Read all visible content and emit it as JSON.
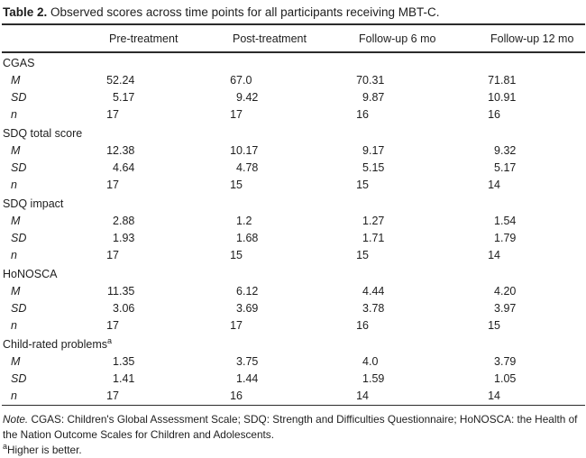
{
  "caption": {
    "label": "Table 2.",
    "text": "Observed scores across time points for all participants receiving MBT-C."
  },
  "table": {
    "columns": [
      "Pre-treatment",
      "Post-treatment",
      "Follow-up 6 mo",
      "Follow-up 12 mo"
    ],
    "groups": [
      {
        "name": "CGAS",
        "sup": "",
        "rows": [
          {
            "stat": "M",
            "values": [
              "52.24",
              "67.0",
              "70.31",
              "71.81"
            ]
          },
          {
            "stat": "SD",
            "values": [
              "5.17",
              "9.42",
              "9.87",
              "10.91"
            ]
          },
          {
            "stat": "n",
            "values": [
              "17",
              "17",
              "16",
              "16"
            ]
          }
        ]
      },
      {
        "name": "SDQ total score",
        "sup": "",
        "rows": [
          {
            "stat": "M",
            "values": [
              "12.38",
              "10.17",
              "9.17",
              "9.32"
            ]
          },
          {
            "stat": "SD",
            "values": [
              "4.64",
              "4.78",
              "5.15",
              "5.17"
            ]
          },
          {
            "stat": "n",
            "values": [
              "17",
              "15",
              "15",
              "14"
            ]
          }
        ]
      },
      {
        "name": "SDQ impact",
        "sup": "",
        "rows": [
          {
            "stat": "M",
            "values": [
              "2.88",
              "1.2",
              "1.27",
              "1.54"
            ]
          },
          {
            "stat": "SD",
            "values": [
              "1.93",
              "1.68",
              "1.71",
              "1.79"
            ]
          },
          {
            "stat": "n",
            "values": [
              "17",
              "15",
              "15",
              "14"
            ]
          }
        ]
      },
      {
        "name": "HoNOSCA",
        "sup": "",
        "rows": [
          {
            "stat": "M",
            "values": [
              "11.35",
              "6.12",
              "4.44",
              "4.20"
            ]
          },
          {
            "stat": "SD",
            "values": [
              "3.06",
              "3.69",
              "3.78",
              "3.97"
            ]
          },
          {
            "stat": "n",
            "values": [
              "17",
              "17",
              "16",
              "15"
            ]
          }
        ]
      },
      {
        "name": "Child-rated problems",
        "sup": "a",
        "rows": [
          {
            "stat": "M",
            "values": [
              "1.35",
              "3.75",
              "4.0",
              "3.79"
            ]
          },
          {
            "stat": "SD",
            "values": [
              "1.41",
              "1.44",
              "1.59",
              "1.05"
            ]
          },
          {
            "stat": "n",
            "values": [
              "17",
              "16",
              "14",
              "14"
            ]
          }
        ]
      }
    ]
  },
  "footer": {
    "note_label": "Note.",
    "note_text": " CGAS: Children's Global Assessment Scale; SDQ: Strength and Difficulties Questionnaire; HoNOSCA: the Health of the Nation Outcome Scales for Children and Adolescents.",
    "footnote_marker": "a",
    "footnote_text": "Higher is better."
  }
}
